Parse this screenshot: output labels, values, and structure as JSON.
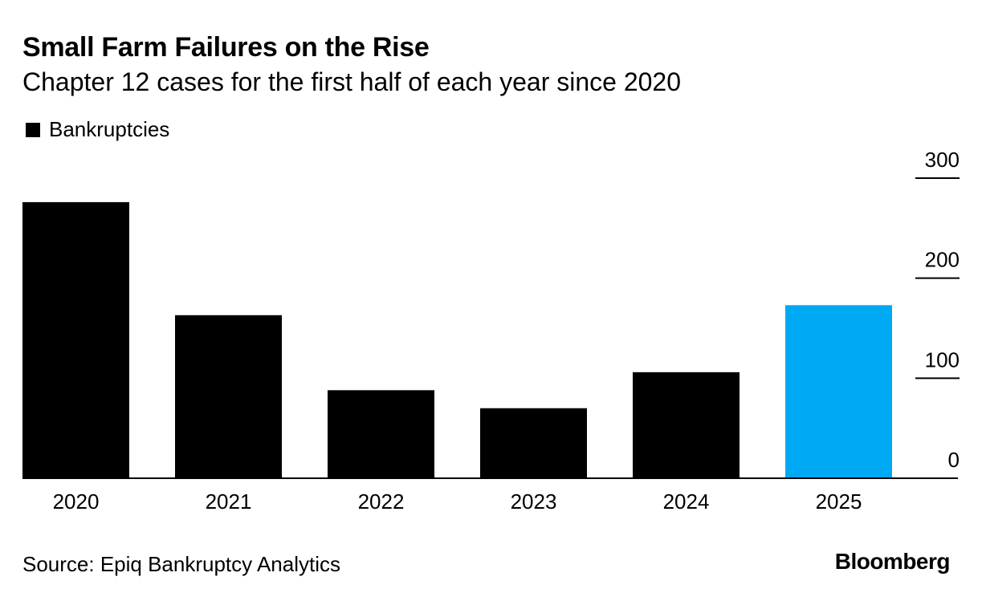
{
  "chart_data": {
    "type": "bar",
    "title": "Small Farm Failures on the Rise",
    "subtitle": "Chapter 12 cases for the first half of each year since 2020",
    "legend": [
      "Bankruptcies"
    ],
    "categories": [
      "2020",
      "2021",
      "2022",
      "2023",
      "2024",
      "2025"
    ],
    "values": [
      276,
      163,
      88,
      70,
      106,
      173
    ],
    "highlight_index": 5,
    "ylim": [
      0,
      300
    ],
    "yticks": [
      0,
      100,
      200,
      300
    ],
    "xlabel": "",
    "ylabel": "",
    "colors": {
      "bar": "#000000",
      "highlight": "#00A9F4",
      "axis": "#000000"
    }
  },
  "footer": {
    "source": "Source: Epiq Bankruptcy Analytics",
    "brand": "Bloomberg"
  }
}
